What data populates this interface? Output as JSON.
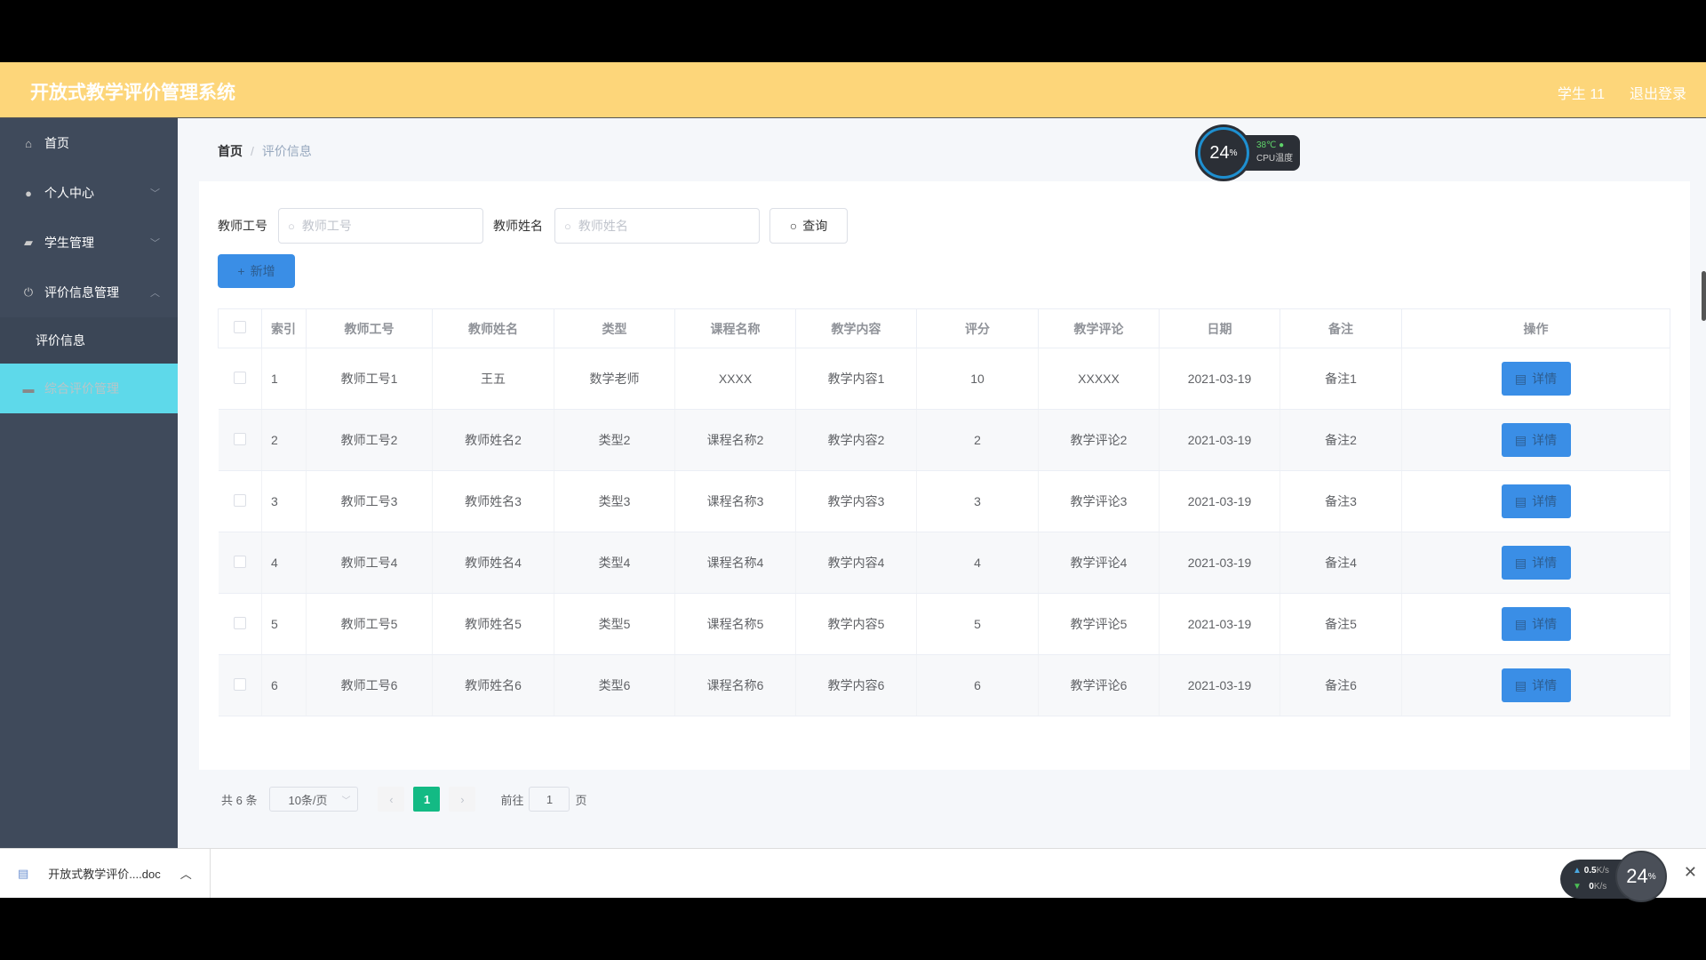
{
  "header": {
    "title": "开放式教学评价管理系统",
    "user": "学生 11",
    "logout": "退出登录"
  },
  "sidebar": {
    "items": [
      {
        "label": "首页",
        "icon": "home-icon"
      },
      {
        "label": "个人中心",
        "icon": "user-icon"
      },
      {
        "label": "学生管理",
        "icon": "wallet-icon"
      },
      {
        "label": "评价信息管理",
        "icon": "power-icon"
      },
      {
        "label": "评价信息"
      },
      {
        "label": "综合评价管理",
        "icon": "monitor-icon",
        "active": true
      }
    ]
  },
  "breadcrumb": {
    "home": "首页",
    "current": "评价信息"
  },
  "search": {
    "teacher_id_label": "教师工号",
    "teacher_id_placeholder": "教师工号",
    "teacher_name_label": "教师姓名",
    "teacher_name_placeholder": "教师姓名",
    "query": "查询"
  },
  "add_label": "新增",
  "table": {
    "columns": [
      "索引",
      "教师工号",
      "教师姓名",
      "类型",
      "课程名称",
      "教学内容",
      "评分",
      "教学评论",
      "日期",
      "备注",
      "操作"
    ],
    "detail_label": "详情",
    "rows": [
      [
        "1",
        "教师工号1",
        "王五",
        "数学老师",
        "XXXX",
        "教学内容1",
        "10",
        "XXXXX",
        "2021-03-19",
        "备注1"
      ],
      [
        "2",
        "教师工号2",
        "教师姓名2",
        "类型2",
        "课程名称2",
        "教学内容2",
        "2",
        "教学评论2",
        "2021-03-19",
        "备注2"
      ],
      [
        "3",
        "教师工号3",
        "教师姓名3",
        "类型3",
        "课程名称3",
        "教学内容3",
        "3",
        "教学评论3",
        "2021-03-19",
        "备注3"
      ],
      [
        "4",
        "教师工号4",
        "教师姓名4",
        "类型4",
        "课程名称4",
        "教学内容4",
        "4",
        "教学评论4",
        "2021-03-19",
        "备注4"
      ],
      [
        "5",
        "教师工号5",
        "教师姓名5",
        "类型5",
        "课程名称5",
        "教学内容5",
        "5",
        "教学评论5",
        "2021-03-19",
        "备注5"
      ],
      [
        "6",
        "教师工号6",
        "教师姓名6",
        "类型6",
        "课程名称6",
        "教学内容6",
        "6",
        "教学评论6",
        "2021-03-19",
        "备注6"
      ]
    ]
  },
  "pagination": {
    "total": "共 6 条",
    "page_size": "10条/页",
    "current": "1",
    "goto_label": "前往",
    "goto_value": "1",
    "page_suffix": "页"
  },
  "cpu_widget": {
    "percent": "24",
    "percent_unit": "%",
    "temp": "38℃",
    "label": "CPU温度"
  },
  "download_bar": {
    "file": "开放式教学评价....doc"
  },
  "net_widget": {
    "up": "0.5",
    "up_unit": "K/s",
    "down": "0",
    "down_unit": "K/s",
    "percent": "24",
    "percent_unit": "%"
  },
  "colors": {
    "header": "#fdd67a",
    "sidebar": "#3f4a5b",
    "active": "#5ed9ea",
    "primary": "#3a8ee6",
    "page_active": "#13ba84"
  }
}
